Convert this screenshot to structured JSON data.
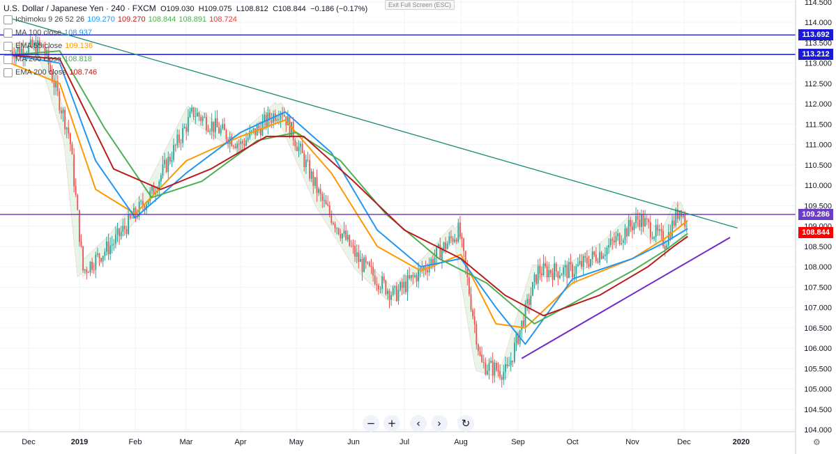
{
  "legend": {
    "symbol": "U.S. Dollar / Japanese Yen · 240 · FXCM",
    "open": "O109.030",
    "high": "H109.075",
    "low": "L108.812",
    "close": "C108.844",
    "change": "−0.186 (−0.17%)",
    "indicators": [
      {
        "name": "Ichimoku 9 26 52 26",
        "values": [
          "109.270",
          "109.270",
          "108.844",
          "108.891",
          "108.724"
        ],
        "colors": [
          "#2196f3",
          "#b71c1c",
          "#4caf50",
          "#4caf50",
          "#e53935"
        ]
      },
      {
        "name": "MA 100 close",
        "values": [
          "108.937"
        ],
        "colors": [
          "#2196f3"
        ]
      },
      {
        "name": "EMA 55 close",
        "values": [
          "109.136"
        ],
        "colors": [
          "#ff9800"
        ]
      },
      {
        "name": "MA 200 close",
        "values": [
          "108.818"
        ],
        "colors": [
          "#4caf50"
        ]
      },
      {
        "name": "EMA 200 close",
        "values": [
          "108.746"
        ],
        "colors": [
          "#b71c1c"
        ]
      }
    ]
  },
  "exit_fullscreen": "Exit Full Screen (ESC)",
  "toolbar": {
    "zoom_out": "−",
    "zoom_in": "+",
    "scroll_left": "‹",
    "scroll_right": "›",
    "reset": "↻"
  },
  "colors": {
    "candle_up": "#26a69a",
    "candle_down": "#ef5350",
    "horizontal_line": "#1a1ad6",
    "support_line": "#6f2ac8",
    "trend_line": "#178a74",
    "price_tag_red": "#ff0000",
    "price_tag_purple": "#6a3cc8",
    "price_tag_blue": "#1a1ad6"
  },
  "chart_data": {
    "type": "line",
    "title": "U.S. Dollar / Japanese Yen · 240 · FXCM",
    "xlabel": "",
    "ylabel": "",
    "ylim": [
      103.95,
      114.55
    ],
    "y_ticks": [
      "104.000",
      "104.500",
      "105.000",
      "105.500",
      "106.000",
      "106.500",
      "107.000",
      "107.500",
      "108.000",
      "108.500",
      "109.000",
      "109.500",
      "110.000",
      "110.500",
      "111.000",
      "111.500",
      "112.000",
      "112.500",
      "113.000",
      "113.500",
      "114.000",
      "114.500"
    ],
    "x_ticks": [
      "Dec",
      "2019",
      "Feb",
      "Mar",
      "Apr",
      "May",
      "Jun",
      "Jul",
      "Aug",
      "Sep",
      "Oct",
      "Nov",
      "Dec",
      "2020"
    ],
    "price_labels": [
      {
        "value": "113.692",
        "style": "blue"
      },
      {
        "value": "113.212",
        "style": "blue"
      },
      {
        "value": "109.286",
        "style": "purple"
      },
      {
        "value": "108.844",
        "style": "red"
      }
    ],
    "horizontal_levels": [
      113.692,
      113.212,
      109.286
    ],
    "trend_lines": [
      {
        "name": "descending resistance",
        "x": [
          "2018-11-20",
          "2019-12-30"
        ],
        "y": [
          114.1,
          108.95
        ]
      },
      {
        "name": "rising support",
        "x": [
          "2019-09-03",
          "2019-12-26"
        ],
        "y": [
          105.75,
          108.72
        ]
      }
    ],
    "grid": true,
    "series": [
      {
        "name": "USD/JPY",
        "x": [
          "2018-11-20",
          "2018-12-10",
          "2018-12-26",
          "2019-01-03",
          "2019-01-20",
          "2019-02-10",
          "2019-03-05",
          "2019-04-01",
          "2019-04-23",
          "2019-05-15",
          "2019-06-05",
          "2019-06-25",
          "2019-07-15",
          "2019-07-31",
          "2019-08-12",
          "2019-08-26",
          "2019-09-12",
          "2019-10-01",
          "2019-10-20",
          "2019-11-05",
          "2019-11-20",
          "2019-11-29",
          "2019-12-03"
        ],
        "values": [
          113.3,
          113.4,
          111.2,
          107.9,
          108.6,
          109.8,
          111.8,
          111.0,
          111.9,
          109.6,
          108.1,
          107.3,
          108.1,
          108.9,
          105.6,
          105.4,
          107.9,
          107.9,
          108.5,
          109.2,
          108.6,
          109.5,
          108.844
        ]
      },
      {
        "name": "EMA 55 close",
        "x": [
          "2018-11-20",
          "2018-12-20",
          "2019-01-10",
          "2019-02-01",
          "2019-03-01",
          "2019-04-01",
          "2019-04-25",
          "2019-05-20",
          "2019-06-15",
          "2019-07-10",
          "2019-08-01",
          "2019-08-20",
          "2019-09-05",
          "2019-10-01",
          "2019-11-01",
          "2019-11-20",
          "2019-12-03"
        ],
        "values": [
          113.0,
          112.5,
          109.9,
          109.3,
          110.6,
          111.2,
          111.6,
          110.3,
          108.5,
          107.9,
          108.3,
          106.6,
          106.5,
          107.6,
          108.2,
          108.7,
          109.136
        ]
      },
      {
        "name": "MA 100 close",
        "x": [
          "2018-11-20",
          "2018-12-20",
          "2019-01-10",
          "2019-02-01",
          "2019-03-01",
          "2019-04-01",
          "2019-04-25",
          "2019-05-20",
          "2019-06-15",
          "2019-07-10",
          "2019-08-01",
          "2019-08-20",
          "2019-09-05",
          "2019-10-01",
          "2019-11-01",
          "2019-11-20",
          "2019-12-03"
        ],
        "values": [
          113.2,
          113.0,
          110.6,
          109.2,
          110.3,
          111.3,
          111.8,
          110.8,
          108.9,
          108.0,
          108.2,
          107.0,
          106.1,
          107.7,
          108.2,
          108.6,
          108.937
        ]
      },
      {
        "name": "MA 200 close",
        "x": [
          "2018-11-20",
          "2018-12-20",
          "2019-01-15",
          "2019-02-10",
          "2019-03-10",
          "2019-04-10",
          "2019-05-01",
          "2019-05-25",
          "2019-06-20",
          "2019-07-20",
          "2019-08-15",
          "2019-09-10",
          "2019-10-01",
          "2019-11-01",
          "2019-11-20",
          "2019-12-03"
        ],
        "values": [
          113.2,
          113.3,
          111.4,
          109.7,
          110.1,
          111.1,
          111.3,
          110.6,
          109.3,
          108.2,
          107.6,
          106.6,
          107.1,
          107.9,
          108.4,
          108.818
        ]
      },
      {
        "name": "EMA 200 close",
        "x": [
          "2018-11-20",
          "2018-12-20",
          "2019-01-20",
          "2019-02-15",
          "2019-03-15",
          "2019-04-15",
          "2019-05-05",
          "2019-06-01",
          "2019-07-01",
          "2019-08-01",
          "2019-08-25",
          "2019-09-15",
          "2019-10-15",
          "2019-11-10",
          "2019-11-25",
          "2019-12-03"
        ],
        "values": [
          113.2,
          113.1,
          110.4,
          109.9,
          110.4,
          111.2,
          111.2,
          110.1,
          108.9,
          108.2,
          107.3,
          106.8,
          107.3,
          108.0,
          108.5,
          108.746
        ]
      }
    ]
  }
}
